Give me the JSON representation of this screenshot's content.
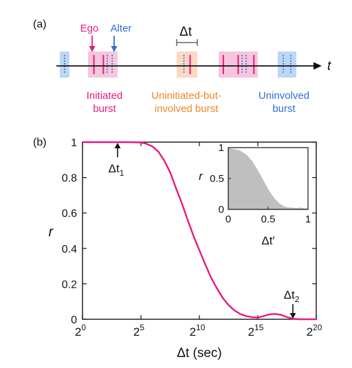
{
  "panel_a": {
    "label": "(a)",
    "ego_label": "Ego",
    "alter_label": "Alter",
    "delta_t_label": "Δt",
    "time_label": "t",
    "initiated_line1": "Initiated",
    "initiated_line2": "burst",
    "uninit_line1": "Uninitiated-but-",
    "uninit_line2": "involved burst",
    "uninvolved_line1": "Uninvolved",
    "uninvolved_line2": "burst",
    "colors": {
      "ego": "#e8197e",
      "alter": "#2f6fd6",
      "initiated_bg": "#f6c6dd",
      "uninit_bg": "#fbd9c2",
      "uninvolved_bg": "#bdd6f4",
      "uninit_text": "#f0862b"
    },
    "bursts": [
      {
        "type": "uninvolved",
        "ego": [],
        "alter": [
          0.5
        ]
      },
      {
        "type": "initiated",
        "ego": [
          0.2,
          0.52
        ],
        "alter": [
          0.65,
          0.82
        ]
      },
      {
        "type": "uninit",
        "ego": [
          0.65
        ],
        "alter": [
          0.35
        ]
      },
      {
        "type": "initiated",
        "ego": [
          0.12,
          0.5,
          0.9
        ],
        "alter": [
          0.6,
          0.7
        ]
      },
      {
        "type": "uninvolved",
        "ego": [],
        "alter": [
          0.3,
          0.7
        ]
      }
    ]
  },
  "panel_b": {
    "label": "(b)"
  },
  "chart_data": [
    {
      "type": "line",
      "xlabel": "Δt (sec)",
      "ylabel": "r",
      "x_scale": "log2",
      "xlim": [
        1,
        1048576
      ],
      "ylim": [
        0,
        1
      ],
      "x_ticks": [
        1,
        32,
        1024,
        32768,
        1048576
      ],
      "x_tick_base": "2",
      "x_tick_exponents": [
        "0",
        "5",
        "10",
        "15",
        "20"
      ],
      "y_ticks": [
        0,
        0.2,
        0.4,
        0.6,
        0.8,
        1
      ],
      "y_tick_labels": [
        "0",
        "0.2",
        "0.4",
        "0.6",
        "0.8",
        "1"
      ],
      "color": "#e8197e",
      "x": [
        1,
        2,
        4,
        8,
        16,
        32,
        45,
        64,
        91,
        128,
        181,
        256,
        362,
        512,
        724,
        1024,
        1448,
        2048,
        2896,
        4096,
        5793,
        8192,
        11585,
        16384,
        23170,
        32768,
        46341,
        65536,
        92682,
        131072,
        185364,
        262144,
        370728,
        524288,
        1048576
      ],
      "y": [
        1,
        1,
        1,
        1,
        1,
        0.998,
        0.99,
        0.975,
        0.945,
        0.895,
        0.83,
        0.74,
        0.655,
        0.56,
        0.47,
        0.39,
        0.31,
        0.235,
        0.175,
        0.12,
        0.08,
        0.05,
        0.03,
        0.018,
        0.012,
        0.01,
        0.018,
        0.028,
        0.03,
        0.025,
        0.012,
        0.003,
        0,
        0,
        0
      ],
      "annotations": [
        {
          "text": "Δt",
          "sub": "1",
          "x": 8,
          "y": 1
        },
        {
          "text": "Δt",
          "sub": "2",
          "x": 262144,
          "y": 0
        }
      ]
    },
    {
      "type": "area",
      "xlabel": "Δt′",
      "ylabel": "r",
      "xlim": [
        0,
        1
      ],
      "ylim": [
        0,
        1
      ],
      "x_ticks": [
        0,
        0.5,
        1
      ],
      "x_tick_labels": [
        "0",
        "0.5",
        "1"
      ],
      "y_ticks": [
        0,
        0.5,
        1
      ],
      "y_tick_labels": [
        "0",
        "0.5",
        "1"
      ],
      "color": "#bfbfbf",
      "x": [
        0,
        0.02,
        0.05,
        0.1,
        0.15,
        0.2,
        0.25,
        0.3,
        0.35,
        0.4,
        0.45,
        0.5,
        0.55,
        0.6,
        0.65,
        0.7,
        0.75,
        0.8,
        0.85,
        0.9,
        0.95,
        1
      ],
      "y": [
        1,
        0.99,
        0.98,
        0.97,
        0.95,
        0.91,
        0.86,
        0.78,
        0.68,
        0.57,
        0.45,
        0.33,
        0.23,
        0.15,
        0.09,
        0.05,
        0.03,
        0.03,
        0.02,
        0.03,
        0.02,
        0.01
      ]
    }
  ]
}
